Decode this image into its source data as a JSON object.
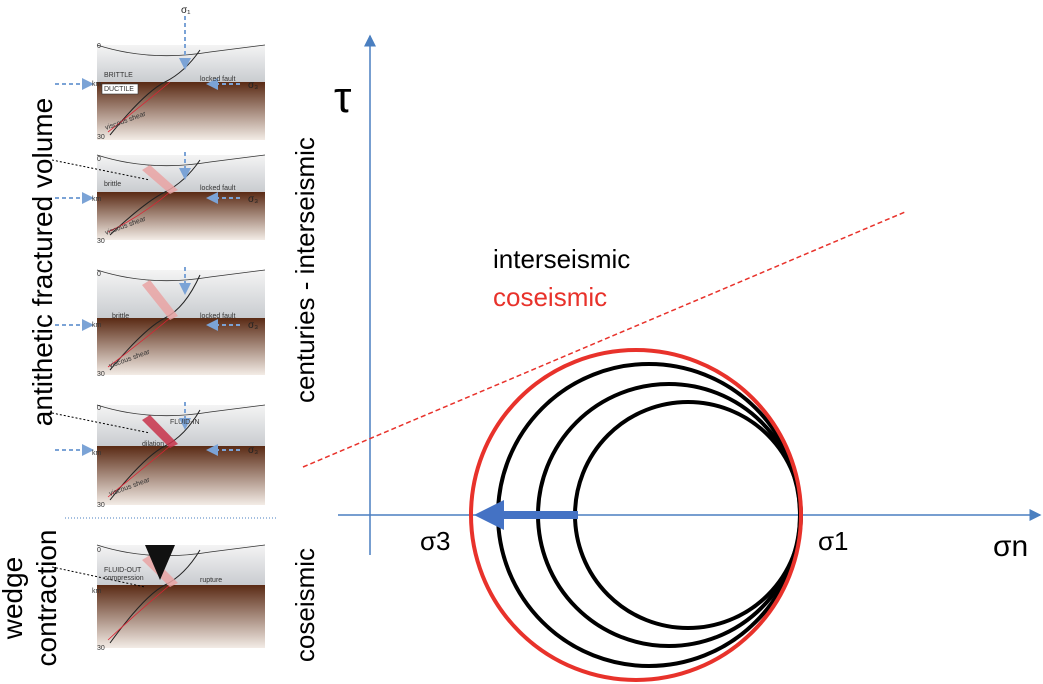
{
  "diagram": {
    "axis_labels": {
      "tau": "τ",
      "sigma_n": "σn"
    },
    "point_labels": {
      "sigma3": "σ3",
      "sigma1": "σ1"
    },
    "legend": [
      "interseismic",
      "coseismic"
    ],
    "side_labels": {
      "interseismic_period": "centuries - interseismic",
      "coseismic_period": "coseismic"
    },
    "panel_group_labels": {
      "upper": "antithetic fractured volume",
      "lower": [
        "wedge",
        "contraction"
      ]
    }
  },
  "panels": [
    {
      "labels": [
        "0",
        "BRITTLE",
        "DUCTILE",
        "locked fault",
        "km",
        "30",
        "viscous shear",
        "σ₁",
        "σ₃"
      ]
    },
    {
      "labels": [
        "0",
        "brittle",
        "locked fault",
        "km",
        "30",
        "viscous shear",
        "σ₃"
      ]
    },
    {
      "labels": [
        "0",
        "brittle",
        "locked fault",
        "km",
        "30",
        "viscous shear",
        "σ₃"
      ]
    },
    {
      "labels": [
        "0",
        "FLUID-IN",
        "dilation",
        "km",
        "30",
        "viscous shear",
        "σ₃"
      ]
    },
    {
      "labels": [
        "0",
        "FLUID-OUT",
        "compression",
        "rupture",
        "km",
        "30"
      ]
    }
  ]
}
